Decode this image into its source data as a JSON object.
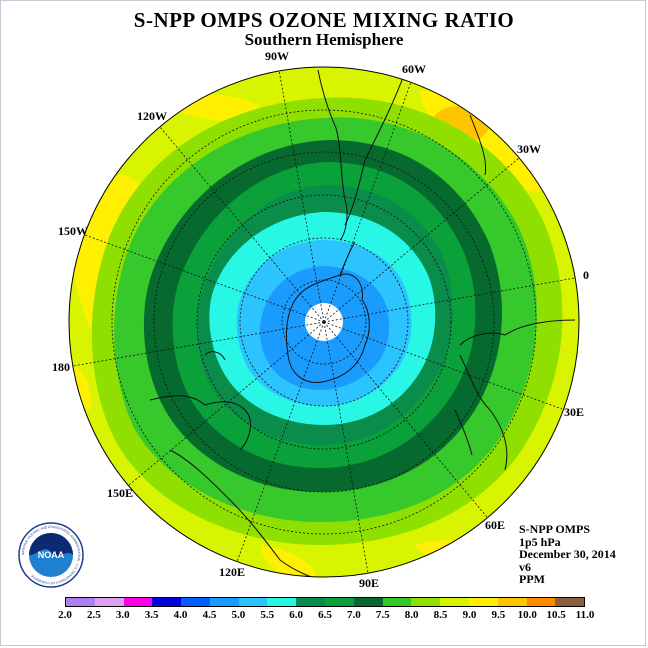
{
  "title": "S-NPP OMPS OZONE MIXING RATIO",
  "subtitle": "Southern Hemisphere",
  "longitude_labels": {
    "w90": "90W",
    "w60": "60W",
    "w30": "30W",
    "w120": "120W",
    "w150": "150W",
    "lon0": "0",
    "lon180": "180",
    "e30": "30E",
    "e150": "150E",
    "e60": "60E",
    "e120": "120E",
    "e90": "90E"
  },
  "info": {
    "instrument": "S-NPP OMPS",
    "level": "1p5 hPa",
    "date": "December 30, 2014",
    "version": "v6",
    "units": "PPM"
  },
  "logo": {
    "text": "NOAA",
    "ring_text": "NATIONAL OCEANIC AND ATMOSPHERIC ADMINISTRATION · U.S. DEPARTMENT OF COMMERCE"
  },
  "colorbar": {
    "ticks": [
      "2.0",
      "2.5",
      "3.0",
      "3.5",
      "4.0",
      "4.5",
      "5.0",
      "5.5",
      "6.0",
      "6.5",
      "7.0",
      "7.5",
      "8.0",
      "8.5",
      "9.0",
      "9.5",
      "10.0",
      "10.5",
      "11.0"
    ],
    "colors": [
      "#b07ef0",
      "#e0a0f0",
      "#ff00e6",
      "#0000e0",
      "#0060ff",
      "#1a9cff",
      "#2cc4ff",
      "#29f7e6",
      "#0a8c4a",
      "#0aa03a",
      "#066a2e",
      "#37c82b",
      "#8fe000",
      "#d8f400",
      "#ffef00",
      "#ffc400",
      "#ff8c00",
      "#ff3c00",
      "#e00000"
    ],
    "legend_extra": "#8b5e3c"
  },
  "map": {
    "projection": "polar stereographic, south pole centered",
    "field": "ozone mixing ratio",
    "color_levels_shown": [
      "4.5",
      "5.0",
      "5.5",
      "6.0",
      "6.5",
      "7.0",
      "7.5",
      "8.0",
      "8.5",
      "9.0"
    ]
  }
}
